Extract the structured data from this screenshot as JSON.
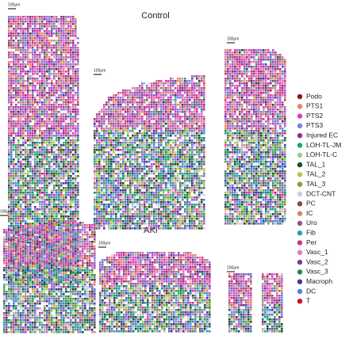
{
  "panels": [
    {
      "title": "Control",
      "sections": [
        {
          "scale_bar": "100μm"
        },
        {
          "scale_bar": "100μm"
        },
        {
          "scale_bar": "100μm"
        }
      ]
    },
    {
      "title": "AKI",
      "sections": [
        {
          "scale_bar": "100μm"
        },
        {
          "scale_bar": "100μm"
        },
        {
          "scale_bar": "100μm"
        }
      ]
    }
  ],
  "legend": [
    {
      "label": "Podo",
      "color": "#8b1a1a"
    },
    {
      "label": "PTS1",
      "color": "#e8836b"
    },
    {
      "label": "PTS2",
      "color": "#d63fc2"
    },
    {
      "label": "PTS3",
      "color": "#7b7fe0"
    },
    {
      "label": "Injured EC",
      "color": "#9a2a86"
    },
    {
      "label": "LOH-TL-JM",
      "color": "#1aa56e"
    },
    {
      "label": "LOH-TL-C",
      "color": "#9fd08f"
    },
    {
      "label": "TAL_1",
      "color": "#1e4d2b"
    },
    {
      "label": "TAL_2",
      "color": "#b5c93a"
    },
    {
      "label": "TAL_3",
      "color": "#8a9a3a"
    },
    {
      "label": "DCT-CNT",
      "color": "#d8c8e8"
    },
    {
      "label": "PC",
      "color": "#8b4a3a"
    },
    {
      "label": "IC",
      "color": "#c98a6a"
    },
    {
      "label": "Uro",
      "color": "#9e4a8f"
    },
    {
      "label": "Fib",
      "color": "#2a9fb0"
    },
    {
      "label": "Per",
      "color": "#c83a8a"
    },
    {
      "label": "Vasc_1",
      "color": "#e07ac8"
    },
    {
      "label": "Vasc_2",
      "color": "#7a3a9a"
    },
    {
      "label": "Vasc_3",
      "color": "#1a8a4a"
    },
    {
      "label": "Macroph",
      "color": "#3a3aa0"
    },
    {
      "label": "DC",
      "color": "#5a7ae0"
    },
    {
      "label": "T",
      "color": "#c8102e"
    }
  ]
}
